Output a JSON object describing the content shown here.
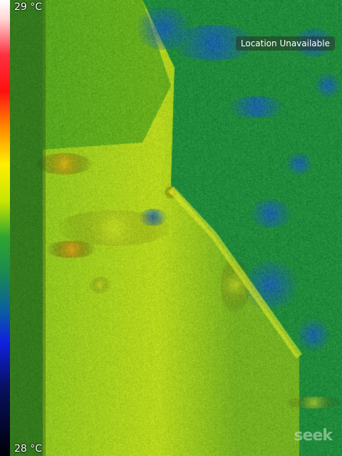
{
  "scale": {
    "max_label": "29 °C",
    "min_label": "28 °C"
  },
  "overlay": {
    "location_text": "Location Unavailable",
    "brand_text": "seek"
  },
  "colors": {
    "base_green": "#2e8f22",
    "warm_yellow": "#d6e61a",
    "cool_blue": "#1a66b4",
    "hot_orange": "#f0a010"
  }
}
